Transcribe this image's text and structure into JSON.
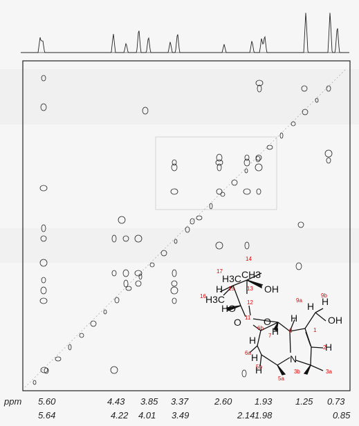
{
  "x_axis": {
    "unit": "ppm",
    "ticks_top": [
      "5.60",
      "4.43",
      "4.22",
      "3.85",
      "3.37",
      "2.60",
      "1.93",
      "1.25",
      "0.73"
    ],
    "ticks_bottom": [
      "5.64",
      "4.22",
      "4.01",
      "3.49",
      "2.14",
      "1.98",
      "0.85"
    ]
  },
  "spectrum": {
    "peaks_ppm": [
      5.64,
      5.6,
      4.43,
      4.22,
      4.01,
      3.85,
      3.49,
      3.37,
      2.6,
      2.14,
      1.98,
      1.93,
      1.25,
      0.85,
      0.73
    ]
  },
  "structure": {
    "atoms": [
      "H3C",
      "CH3",
      "H",
      "OH",
      "HO",
      "H3C",
      "O",
      "O",
      "H",
      "H",
      "H",
      "H",
      "H",
      "N",
      "H",
      "H",
      "OH",
      "H"
    ],
    "numbers": [
      "17",
      "14",
      "15",
      "13",
      "16",
      "12",
      "11",
      "9a",
      "9b",
      "6b",
      "7",
      "8",
      "1",
      "2",
      "6a",
      "5b",
      "3b",
      "5a",
      "3a"
    ]
  },
  "colors": {
    "ink": "#111111",
    "label": "#e00000",
    "frame": "#222222"
  }
}
